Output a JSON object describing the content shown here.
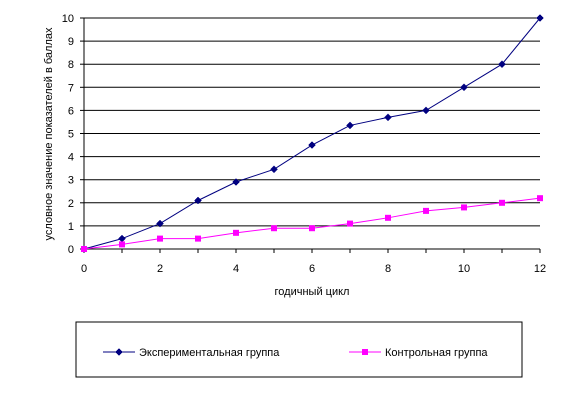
{
  "chart_data": {
    "type": "line",
    "title": "",
    "xlabel": "годичный цикл",
    "ylabel": "условное значение показателей в баллах",
    "xlim": [
      0,
      12
    ],
    "ylim": [
      0,
      10
    ],
    "x_ticks": [
      0,
      2,
      4,
      6,
      8,
      10,
      12
    ],
    "y_ticks": [
      0,
      1,
      2,
      3,
      4,
      5,
      6,
      7,
      8,
      9,
      10
    ],
    "grid": "horizontal",
    "legend_position": "bottom",
    "x": [
      0,
      1,
      2,
      3,
      4,
      5,
      6,
      7,
      8,
      9,
      10,
      11,
      12
    ],
    "series": [
      {
        "name": "Экспериментальная группа",
        "color": "#000080",
        "marker": "diamond",
        "values": [
          0,
          0.45,
          1.1,
          2.1,
          2.9,
          3.45,
          4.5,
          5.35,
          5.7,
          6.0,
          7.0,
          8.0,
          10.0
        ]
      },
      {
        "name": "Контрольная группа",
        "color": "#ff00ff",
        "marker": "square",
        "values": [
          0,
          0.2,
          0.45,
          0.45,
          0.7,
          0.9,
          0.9,
          1.1,
          1.35,
          1.65,
          1.8,
          2.0,
          2.2
        ]
      }
    ]
  }
}
